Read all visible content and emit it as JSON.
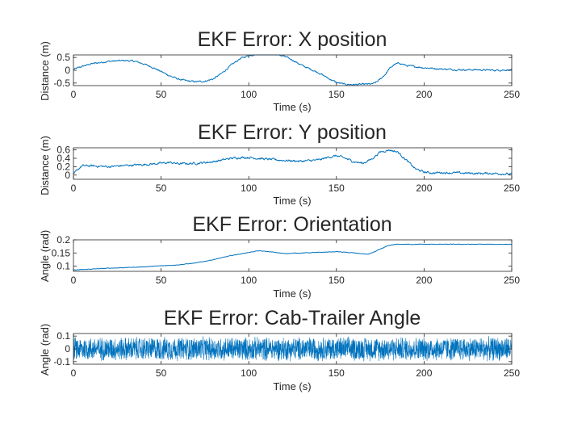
{
  "figure": {
    "background": "#ffffff",
    "series_color": "#0072BD"
  },
  "chart_data": [
    {
      "type": "line",
      "title": "EKF Error: X position",
      "xlabel": "Time (s)",
      "ylabel": "Distance (m)",
      "xlim": [
        0,
        250
      ],
      "ylim": [
        -0.6,
        0.6
      ],
      "xticks": [
        0,
        50,
        100,
        150,
        200,
        250
      ],
      "yticks": [
        -0.5,
        0,
        0.5
      ],
      "ytick_labels": [
        "-0.5",
        "0",
        "0.5"
      ],
      "grid": false,
      "x": [
        0,
        5,
        10,
        20,
        30,
        35,
        40,
        45,
        50,
        55,
        60,
        65,
        70,
        75,
        80,
        85,
        90,
        95,
        100,
        105,
        110,
        115,
        120,
        125,
        130,
        135,
        140,
        145,
        150,
        155,
        160,
        165,
        170,
        172,
        175,
        178,
        180,
        183,
        186,
        190,
        200,
        210,
        220,
        230,
        240,
        250
      ],
      "y": [
        0.03,
        0.15,
        0.25,
        0.35,
        0.38,
        0.35,
        0.25,
        0.12,
        -0.05,
        -0.22,
        -0.35,
        -0.42,
        -0.45,
        -0.43,
        -0.33,
        -0.1,
        0.2,
        0.45,
        0.58,
        0.64,
        0.65,
        0.63,
        0.55,
        0.4,
        0.2,
        0.05,
        -0.1,
        -0.3,
        -0.48,
        -0.55,
        -0.56,
        -0.55,
        -0.54,
        -0.5,
        -0.35,
        -0.15,
        0.05,
        0.22,
        0.28,
        0.18,
        0.1,
        0.05,
        0.02,
        0.02,
        0.0,
        0.02
      ],
      "noise": 0.025
    },
    {
      "type": "line",
      "title": "EKF Error: Y position",
      "xlabel": "Time (s)",
      "ylabel": "Distance (m)",
      "xlim": [
        0,
        250
      ],
      "ylim": [
        -0.1,
        0.65
      ],
      "xticks": [
        0,
        50,
        100,
        150,
        200,
        250
      ],
      "yticks": [
        0,
        0.2,
        0.4,
        0.6
      ],
      "ytick_labels": [
        "0",
        "0.2",
        "0.4",
        "0.6"
      ],
      "grid": false,
      "x": [
        0,
        2,
        5,
        10,
        20,
        30,
        40,
        50,
        55,
        60,
        70,
        80,
        90,
        95,
        100,
        110,
        120,
        130,
        140,
        145,
        150,
        155,
        160,
        165,
        170,
        175,
        180,
        185,
        190,
        195,
        200,
        205,
        210,
        220,
        230,
        240,
        250
      ],
      "y": [
        0.0,
        0.12,
        0.22,
        0.22,
        0.2,
        0.23,
        0.25,
        0.28,
        0.3,
        0.27,
        0.28,
        0.32,
        0.4,
        0.42,
        0.42,
        0.38,
        0.35,
        0.33,
        0.36,
        0.42,
        0.46,
        0.4,
        0.32,
        0.28,
        0.38,
        0.55,
        0.6,
        0.55,
        0.35,
        0.15,
        0.07,
        0.05,
        0.06,
        0.05,
        0.04,
        0.04,
        0.02
      ],
      "noise": 0.02
    },
    {
      "type": "line",
      "title": "EKF Error: Orientation",
      "xlabel": "Time (s)",
      "ylabel": "Angle (rad)",
      "xlim": [
        0,
        250
      ],
      "ylim": [
        0.08,
        0.2
      ],
      "xticks": [
        0,
        50,
        100,
        150,
        200,
        250
      ],
      "yticks": [
        0.1,
        0.15,
        0.2
      ],
      "ytick_labels": [
        "0.1",
        "0.15",
        "0.2"
      ],
      "grid": false,
      "x": [
        0,
        20,
        40,
        60,
        70,
        80,
        90,
        100,
        105,
        110,
        120,
        130,
        140,
        150,
        160,
        168,
        172,
        176,
        180,
        183,
        185,
        190,
        200,
        210,
        220,
        230,
        240,
        250
      ],
      "y": [
        0.085,
        0.092,
        0.097,
        0.105,
        0.112,
        0.125,
        0.14,
        0.152,
        0.158,
        0.156,
        0.148,
        0.15,
        0.152,
        0.155,
        0.15,
        0.145,
        0.155,
        0.168,
        0.178,
        0.182,
        0.183,
        0.183,
        0.183,
        0.183,
        0.183,
        0.183,
        0.183,
        0.183
      ],
      "noise": 0.0008
    },
    {
      "type": "line",
      "title": "EKF Error: Cab-Trailer Angle",
      "xlabel": "Time (s)",
      "ylabel": "Angle (rad)",
      "xlim": [
        0,
        250
      ],
      "ylim": [
        -0.12,
        0.12
      ],
      "xticks": [
        0,
        50,
        100,
        150,
        200,
        250
      ],
      "yticks": [
        -0.1,
        0,
        0.1
      ],
      "ytick_labels": [
        "-0.1",
        "0",
        "0.1"
      ],
      "grid": false,
      "x": [
        0,
        250
      ],
      "y": [
        0.0,
        0.0
      ],
      "noise": 0.1,
      "noise_type": "white"
    }
  ]
}
